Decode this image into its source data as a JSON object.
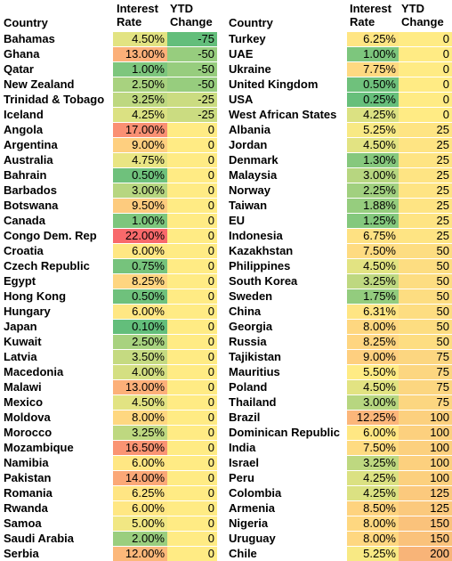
{
  "headers": {
    "country": "Country",
    "rate_line1": "Interest",
    "rate_line2": "Rate",
    "ytd_line1": "YTD",
    "ytd_line2": "Change"
  },
  "left_rows": [
    {
      "country": "Bahamas",
      "rate": "4.50%",
      "ytd": "-75"
    },
    {
      "country": "Ghana",
      "rate": "13.00%",
      "ytd": "-50"
    },
    {
      "country": "Qatar",
      "rate": "1.00%",
      "ytd": "-50"
    },
    {
      "country": "New Zealand",
      "rate": "2.50%",
      "ytd": "-50"
    },
    {
      "country": "Trinidad & Tobago",
      "rate": "3.25%",
      "ytd": "-25"
    },
    {
      "country": "Iceland",
      "rate": "4.25%",
      "ytd": "-25"
    },
    {
      "country": "Angola",
      "rate": "17.00%",
      "ytd": "0"
    },
    {
      "country": "Argentina",
      "rate": "9.00%",
      "ytd": "0"
    },
    {
      "country": "Australia",
      "rate": "4.75%",
      "ytd": "0"
    },
    {
      "country": "Bahrain",
      "rate": "0.50%",
      "ytd": "0"
    },
    {
      "country": "Barbados",
      "rate": "3.00%",
      "ytd": "0"
    },
    {
      "country": "Botswana",
      "rate": "9.50%",
      "ytd": "0"
    },
    {
      "country": "Canada",
      "rate": "1.00%",
      "ytd": "0"
    },
    {
      "country": "Congo Dem. Rep",
      "rate": "22.00%",
      "ytd": "0"
    },
    {
      "country": "Croatia",
      "rate": "6.00%",
      "ytd": "0"
    },
    {
      "country": "Czech Republic",
      "rate": "0.75%",
      "ytd": "0"
    },
    {
      "country": "Egypt",
      "rate": "8.25%",
      "ytd": "0"
    },
    {
      "country": "Hong Kong",
      "rate": "0.50%",
      "ytd": "0"
    },
    {
      "country": "Hungary",
      "rate": "6.00%",
      "ytd": "0"
    },
    {
      "country": "Japan",
      "rate": "0.10%",
      "ytd": "0"
    },
    {
      "country": "Kuwait",
      "rate": "2.50%",
      "ytd": "0"
    },
    {
      "country": "Latvia",
      "rate": "3.50%",
      "ytd": "0"
    },
    {
      "country": "Macedonia",
      "rate": "4.00%",
      "ytd": "0"
    },
    {
      "country": "Malawi",
      "rate": "13.00%",
      "ytd": "0"
    },
    {
      "country": "Mexico",
      "rate": "4.50%",
      "ytd": "0"
    },
    {
      "country": "Moldova",
      "rate": "8.00%",
      "ytd": "0"
    },
    {
      "country": "Morocco",
      "rate": "3.25%",
      "ytd": "0"
    },
    {
      "country": "Mozambique",
      "rate": "16.50%",
      "ytd": "0"
    },
    {
      "country": "Namibia",
      "rate": "6.00%",
      "ytd": "0"
    },
    {
      "country": "Pakistan",
      "rate": "14.00%",
      "ytd": "0"
    },
    {
      "country": "Romania",
      "rate": "6.25%",
      "ytd": "0"
    },
    {
      "country": "Rwanda",
      "rate": "6.00%",
      "ytd": "0"
    },
    {
      "country": "Samoa",
      "rate": "5.00%",
      "ytd": "0"
    },
    {
      "country": "Saudi Arabia",
      "rate": "2.00%",
      "ytd": "0"
    },
    {
      "country": "Serbia",
      "rate": "12.00%",
      "ytd": "0"
    }
  ],
  "right_rows": [
    {
      "country": "Turkey",
      "rate": "6.25%",
      "ytd": "0"
    },
    {
      "country": "UAE",
      "rate": "1.00%",
      "ytd": "0"
    },
    {
      "country": "Ukraine",
      "rate": "7.75%",
      "ytd": "0"
    },
    {
      "country": "United Kingdom",
      "rate": "0.50%",
      "ytd": "0"
    },
    {
      "country": "USA",
      "rate": "0.25%",
      "ytd": "0"
    },
    {
      "country": "West African States",
      "rate": "4.25%",
      "ytd": "0"
    },
    {
      "country": "Albania",
      "rate": "5.25%",
      "ytd": "25"
    },
    {
      "country": "Jordan",
      "rate": "4.50%",
      "ytd": "25"
    },
    {
      "country": "Denmark",
      "rate": "1.30%",
      "ytd": "25"
    },
    {
      "country": "Malaysia",
      "rate": "3.00%",
      "ytd": "25"
    },
    {
      "country": "Norway",
      "rate": "2.25%",
      "ytd": "25"
    },
    {
      "country": "Taiwan",
      "rate": "1.88%",
      "ytd": "25"
    },
    {
      "country": "EU",
      "rate": "1.25%",
      "ytd": "25"
    },
    {
      "country": "Indonesia",
      "rate": "6.75%",
      "ytd": "25"
    },
    {
      "country": "Kazakhstan",
      "rate": "7.50%",
      "ytd": "50"
    },
    {
      "country": "Philippines",
      "rate": "4.50%",
      "ytd": "50"
    },
    {
      "country": "South Korea",
      "rate": "3.25%",
      "ytd": "50"
    },
    {
      "country": "Sweden",
      "rate": "1.75%",
      "ytd": "50"
    },
    {
      "country": "China",
      "rate": "6.31%",
      "ytd": "50"
    },
    {
      "country": "Georgia",
      "rate": "8.00%",
      "ytd": "50"
    },
    {
      "country": "Russia",
      "rate": "8.25%",
      "ytd": "50"
    },
    {
      "country": "Tajikistan",
      "rate": "9.00%",
      "ytd": "75"
    },
    {
      "country": "Mauritius",
      "rate": "5.50%",
      "ytd": "75"
    },
    {
      "country": "Poland",
      "rate": "4.50%",
      "ytd": "75"
    },
    {
      "country": "Thailand",
      "rate": "3.00%",
      "ytd": "75"
    },
    {
      "country": "Brazil",
      "rate": "12.25%",
      "ytd": "100"
    },
    {
      "country": "Dominican Republic",
      "rate": "6.00%",
      "ytd": "100"
    },
    {
      "country": "India",
      "rate": "7.50%",
      "ytd": "100"
    },
    {
      "country": "Israel",
      "rate": "3.25%",
      "ytd": "100"
    },
    {
      "country": "Peru",
      "rate": "4.25%",
      "ytd": "100"
    },
    {
      "country": "Colombia",
      "rate": "4.25%",
      "ytd": "125"
    },
    {
      "country": "Armenia",
      "rate": "8.50%",
      "ytd": "125"
    },
    {
      "country": "Nigeria",
      "rate": "8.00%",
      "ytd": "150"
    },
    {
      "country": "Uruguay",
      "rate": "8.00%",
      "ytd": "150"
    },
    {
      "country": "Chile",
      "rate": "5.25%",
      "ytd": "200"
    }
  ]
}
